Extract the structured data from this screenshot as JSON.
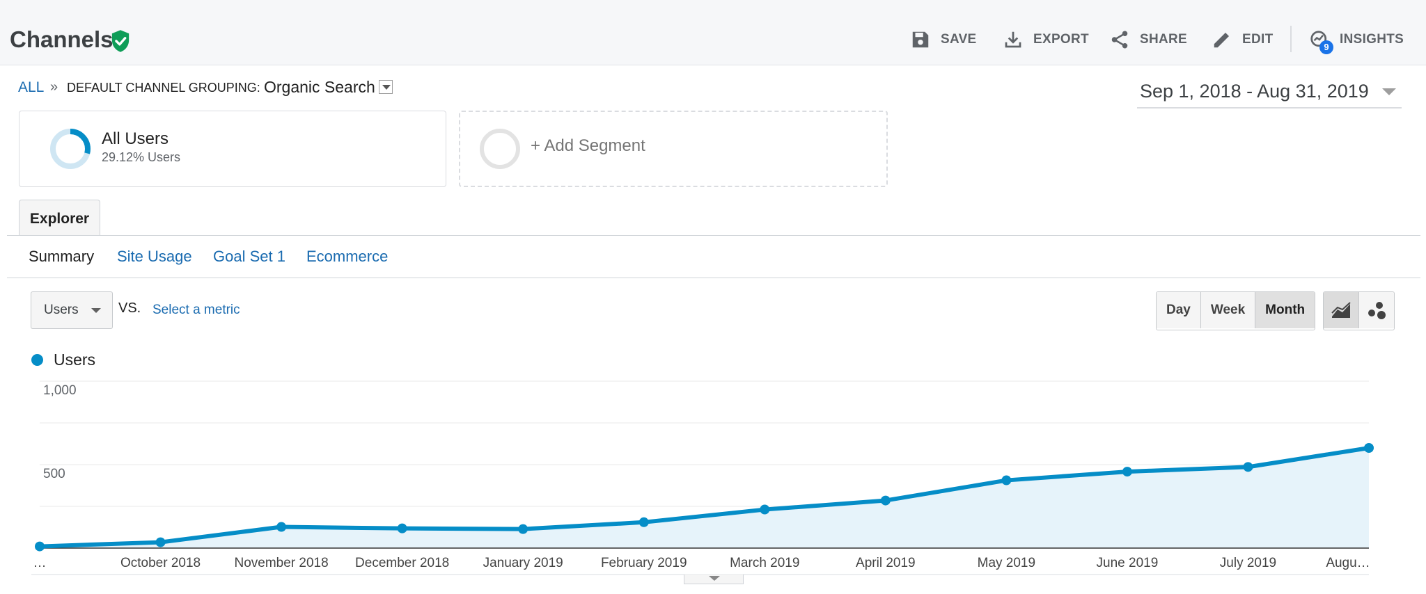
{
  "header": {
    "title": "Channels",
    "actions": [
      {
        "label": "SAVE",
        "icon": "save-icon"
      },
      {
        "label": "EXPORT",
        "icon": "download-icon"
      },
      {
        "label": "SHARE",
        "icon": "share-icon"
      },
      {
        "label": "EDIT",
        "icon": "pencil-icon"
      },
      {
        "label": "INSIGHTS",
        "icon": "insights-icon",
        "badge": "9"
      }
    ]
  },
  "breadcrumb": {
    "all": "ALL",
    "separator": "»",
    "grouping_key": "DEFAULT CHANNEL GROUPING:",
    "grouping_value": "Organic Search"
  },
  "date_range": "Sep 1, 2018 - Aug 31, 2019",
  "segments": {
    "active": {
      "name": "All Users",
      "subtitle": "29.12% Users",
      "percent": 29.12
    },
    "add_label": "+ Add Segment"
  },
  "tabs": {
    "explorer": "Explorer",
    "subtabs": [
      "Summary",
      "Site Usage",
      "Goal Set 1",
      "Ecommerce"
    ]
  },
  "metric": {
    "primary": "Users",
    "vs": "VS.",
    "select_label": "Select a metric"
  },
  "period": {
    "options": [
      "Day",
      "Week",
      "Month"
    ],
    "active": "Month"
  },
  "colors": {
    "series": "#058dc7",
    "area": "#e6f3fa",
    "link": "#1a6bb0",
    "verified": "#0f9d58"
  },
  "chart_data": {
    "type": "line",
    "series": [
      {
        "name": "Users",
        "values": [
          10,
          35,
          127,
          118,
          114,
          155,
          231,
          285,
          406,
          458,
          486,
          600
        ]
      }
    ],
    "categories": [
      "…",
      "October 2018",
      "November 2018",
      "December 2018",
      "January 2019",
      "February 2019",
      "March 2019",
      "April 2019",
      "May 2019",
      "June 2019",
      "July 2019",
      "Augu…"
    ],
    "y_ticks": [
      "1,000",
      "500"
    ],
    "ylim": [
      0,
      1000
    ],
    "grid": true,
    "legend": "top-left"
  }
}
